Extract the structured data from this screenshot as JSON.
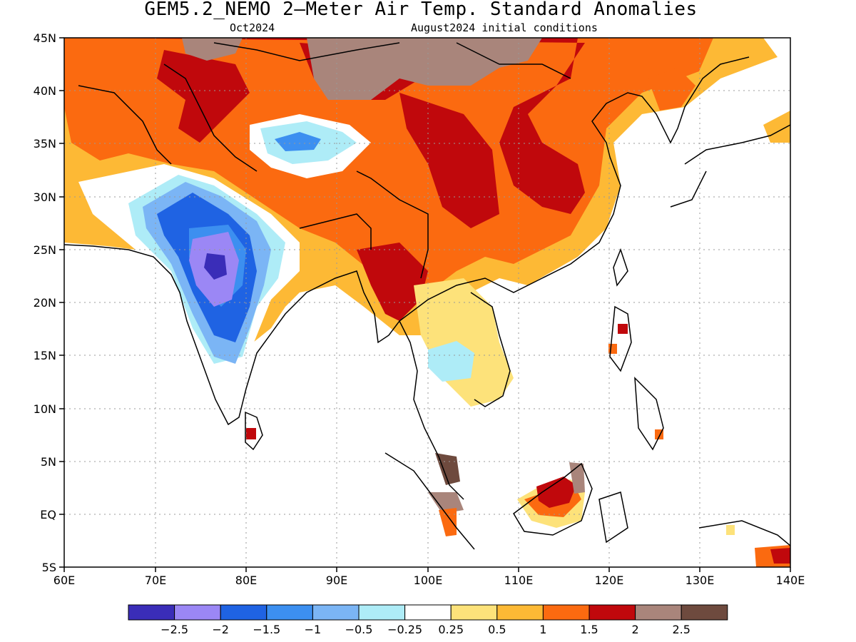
{
  "title": "GEM5.2_NEMO 2—Meter Air Temp. Standard Anomalies",
  "subtitle_left": "Oct2024",
  "subtitle_right": "August2024 initial conditions",
  "map": {
    "lon_range": [
      60,
      140
    ],
    "lat_range": [
      -5,
      45
    ],
    "lon_ticks": [
      "60E",
      "70E",
      "80E",
      "90E",
      "100E",
      "110E",
      "120E",
      "130E",
      "140E"
    ],
    "lat_ticks": [
      "45N",
      "40N",
      "35N",
      "30N",
      "25N",
      "20N",
      "15N",
      "10N",
      "5N",
      "EQ",
      "5S"
    ]
  },
  "colorbar": {
    "colors": [
      "#3a2db8",
      "#9b87f5",
      "#1f63e3",
      "#3c8ff0",
      "#7bb5f5",
      "#aeecf7",
      "#ffffff",
      "#fde27a",
      "#fdb935",
      "#fb6a10",
      "#c0080c",
      "#a9857b",
      "#6e4a3e"
    ],
    "labels": [
      "−2.5",
      "−2",
      "−1.5",
      "−1",
      "−0.5",
      "−0.25",
      "0.25",
      "0.5",
      "1",
      "1.5",
      "2",
      "2.5"
    ]
  }
}
